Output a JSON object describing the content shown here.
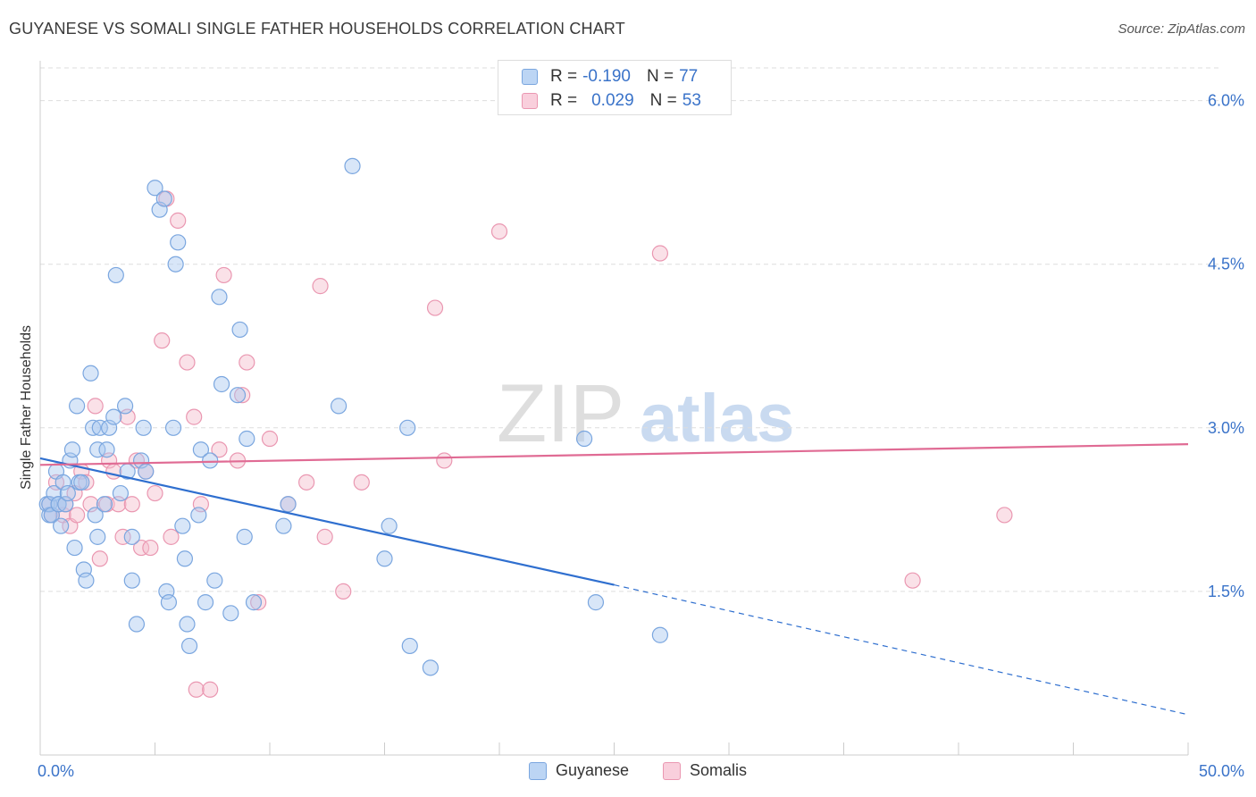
{
  "header": {
    "title": "GUYANESE VS SOMALI SINGLE FATHER HOUSEHOLDS CORRELATION CHART",
    "source": "Source: ZipAtlas.com"
  },
  "watermark": {
    "part1": "ZIP",
    "part2": "atlas"
  },
  "legend_top": {
    "rows": [
      {
        "r_label": "R =",
        "r_value": "-0.190",
        "n_label": "N =",
        "n_value": "77"
      },
      {
        "r_label": "R =",
        "r_value": "0.029",
        "n_label": "N =",
        "n_value": "53"
      }
    ]
  },
  "legend_bottom": {
    "items": [
      {
        "label": "Guyanese"
      },
      {
        "label": "Somalis"
      }
    ]
  },
  "colors": {
    "guyanese_fill": "#a9c8f0",
    "guyanese_stroke": "#7aa6df",
    "guyanese_line": "#2f6fcf",
    "somalis_fill": "#f5bccd",
    "somalis_stroke": "#ea97b1",
    "somalis_line": "#e06b94",
    "tick_label": "#3a73c9",
    "grid": "#dddddd"
  },
  "chart_data": {
    "type": "scatter",
    "title": "GUYANESE VS SOMALI SINGLE FATHER HOUSEHOLDS CORRELATION CHART",
    "xlabel": "",
    "ylabel": "Single Father Households",
    "xlim": [
      0,
      50
    ],
    "ylim": [
      0,
      6.3
    ],
    "x_tick_labels": [
      "0.0%",
      "50.0%"
    ],
    "y_ticks": [
      1.5,
      3.0,
      4.5,
      6.0
    ],
    "y_tick_labels": [
      "1.5%",
      "3.0%",
      "4.5%",
      "6.0%"
    ],
    "grid": "horizontal dashed",
    "legend_placement": "top-center and bottom",
    "series": [
      {
        "name": "Guyanese",
        "r": -0.19,
        "n": 77,
        "trend": {
          "x0": 0,
          "y0": 2.72,
          "x1": 25,
          "y1": 1.56,
          "dashed_to_x": 50,
          "dashed_to_y": 0.37
        },
        "points": [
          [
            0.3,
            2.3
          ],
          [
            0.4,
            2.2
          ],
          [
            0.4,
            2.3
          ],
          [
            0.5,
            2.2
          ],
          [
            0.6,
            2.4
          ],
          [
            0.7,
            2.6
          ],
          [
            0.8,
            2.3
          ],
          [
            0.8,
            2.3
          ],
          [
            0.9,
            2.1
          ],
          [
            1.0,
            2.5
          ],
          [
            1.1,
            2.3
          ],
          [
            1.2,
            2.4
          ],
          [
            1.3,
            2.7
          ],
          [
            1.4,
            2.8
          ],
          [
            1.5,
            1.9
          ],
          [
            1.6,
            3.2
          ],
          [
            1.7,
            2.5
          ],
          [
            1.8,
            2.5
          ],
          [
            1.9,
            1.7
          ],
          [
            2.0,
            1.6
          ],
          [
            2.2,
            3.5
          ],
          [
            2.3,
            3.0
          ],
          [
            2.4,
            2.2
          ],
          [
            2.5,
            2.8
          ],
          [
            2.5,
            2.0
          ],
          [
            2.6,
            3.0
          ],
          [
            2.8,
            2.3
          ],
          [
            2.9,
            2.8
          ],
          [
            3.0,
            3.0
          ],
          [
            3.2,
            3.1
          ],
          [
            3.3,
            4.4
          ],
          [
            3.5,
            2.4
          ],
          [
            3.7,
            3.2
          ],
          [
            3.8,
            2.6
          ],
          [
            4.0,
            2.0
          ],
          [
            4.0,
            1.6
          ],
          [
            4.2,
            1.2
          ],
          [
            4.4,
            2.7
          ],
          [
            4.5,
            3.0
          ],
          [
            4.6,
            2.6
          ],
          [
            5.0,
            5.2
          ],
          [
            5.2,
            5.0
          ],
          [
            5.4,
            5.1
          ],
          [
            5.5,
            1.5
          ],
          [
            5.6,
            1.4
          ],
          [
            5.8,
            3.0
          ],
          [
            5.9,
            4.5
          ],
          [
            6.0,
            4.7
          ],
          [
            6.2,
            2.1
          ],
          [
            6.3,
            1.8
          ],
          [
            6.4,
            1.2
          ],
          [
            6.5,
            1.0
          ],
          [
            6.9,
            2.2
          ],
          [
            7.0,
            2.8
          ],
          [
            7.2,
            1.4
          ],
          [
            7.4,
            2.7
          ],
          [
            7.6,
            1.6
          ],
          [
            7.8,
            4.2
          ],
          [
            7.9,
            3.4
          ],
          [
            8.3,
            1.3
          ],
          [
            8.6,
            3.3
          ],
          [
            8.7,
            3.9
          ],
          [
            8.9,
            2.0
          ],
          [
            9.0,
            2.9
          ],
          [
            9.3,
            1.4
          ],
          [
            10.6,
            2.1
          ],
          [
            10.8,
            2.3
          ],
          [
            13.0,
            3.2
          ],
          [
            13.6,
            5.4
          ],
          [
            15.0,
            1.8
          ],
          [
            15.2,
            2.1
          ],
          [
            16.0,
            3.0
          ],
          [
            16.1,
            1.0
          ],
          [
            17.0,
            0.8
          ],
          [
            23.7,
            2.9
          ],
          [
            24.2,
            1.4
          ],
          [
            27.0,
            1.1
          ]
        ]
      },
      {
        "name": "Somalis",
        "r": 0.029,
        "n": 53,
        "trend": {
          "x0": 0,
          "y0": 2.66,
          "x1": 50,
          "y1": 2.85
        },
        "points": [
          [
            0.4,
            2.3
          ],
          [
            0.5,
            2.2
          ],
          [
            0.7,
            2.5
          ],
          [
            1.0,
            2.2
          ],
          [
            1.1,
            2.3
          ],
          [
            1.3,
            2.1
          ],
          [
            1.5,
            2.4
          ],
          [
            1.6,
            2.2
          ],
          [
            1.8,
            2.6
          ],
          [
            2.0,
            2.5
          ],
          [
            2.2,
            2.3
          ],
          [
            2.4,
            3.2
          ],
          [
            2.6,
            1.8
          ],
          [
            2.9,
            2.3
          ],
          [
            3.0,
            2.7
          ],
          [
            3.2,
            2.6
          ],
          [
            3.4,
            2.3
          ],
          [
            3.6,
            2.0
          ],
          [
            3.8,
            3.1
          ],
          [
            4.0,
            2.3
          ],
          [
            4.2,
            2.7
          ],
          [
            4.4,
            1.9
          ],
          [
            4.6,
            2.6
          ],
          [
            4.8,
            1.9
          ],
          [
            5.0,
            2.4
          ],
          [
            5.3,
            3.8
          ],
          [
            5.5,
            5.1
          ],
          [
            5.7,
            2.0
          ],
          [
            6.0,
            4.9
          ],
          [
            6.4,
            3.6
          ],
          [
            6.7,
            3.1
          ],
          [
            6.8,
            0.6
          ],
          [
            7.0,
            2.3
          ],
          [
            7.4,
            0.6
          ],
          [
            7.8,
            2.8
          ],
          [
            8.0,
            4.4
          ],
          [
            8.6,
            2.7
          ],
          [
            8.8,
            3.3
          ],
          [
            9.0,
            3.6
          ],
          [
            9.5,
            1.4
          ],
          [
            10.0,
            2.9
          ],
          [
            10.8,
            2.3
          ],
          [
            11.6,
            2.5
          ],
          [
            12.2,
            4.3
          ],
          [
            12.4,
            2.0
          ],
          [
            13.2,
            1.5
          ],
          [
            14.0,
            2.5
          ],
          [
            17.2,
            4.1
          ],
          [
            17.6,
            2.7
          ],
          [
            20.0,
            4.8
          ],
          [
            27.0,
            4.6
          ],
          [
            38.0,
            1.6
          ],
          [
            42.0,
            2.2
          ]
        ]
      }
    ]
  }
}
